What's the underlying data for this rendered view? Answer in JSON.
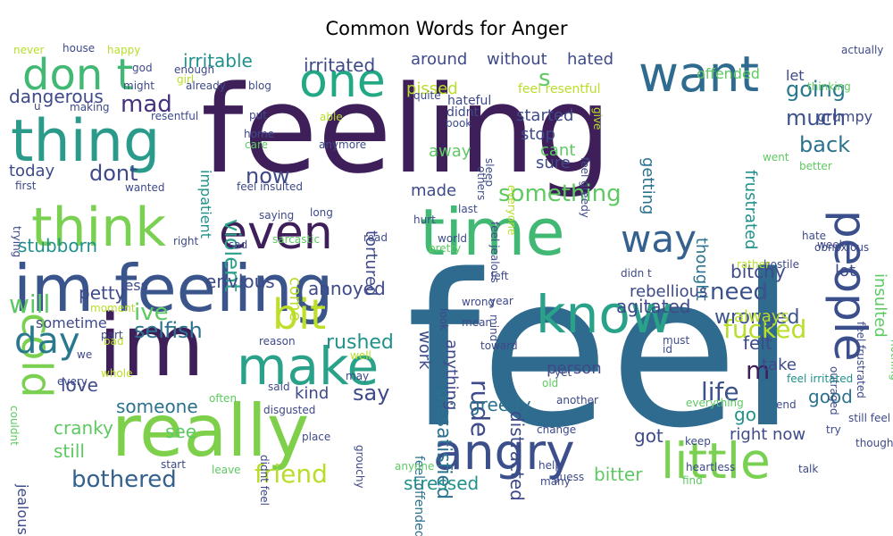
{
  "title": "Common Words for Anger",
  "words": [
    {
      "text": "feel",
      "color": "#2f6a8f"
    },
    {
      "text": "feeling",
      "color": "#3f1f5a"
    },
    {
      "text": "im",
      "color": "#3f1f5a"
    },
    {
      "text": "really",
      "color": "#7ed04b"
    },
    {
      "text": "time",
      "color": "#41b873"
    },
    {
      "text": "im feeling",
      "color": "#39558c"
    },
    {
      "text": "think",
      "color": "#7ad151"
    },
    {
      "text": "thing",
      "color": "#2a9a8a"
    },
    {
      "text": "want",
      "color": "#2f6a8f"
    },
    {
      "text": "know",
      "color": "#2aa28a"
    },
    {
      "text": "little",
      "color": "#7ad151"
    },
    {
      "text": "angry",
      "color": "#3b4f8c"
    },
    {
      "text": "people",
      "color": "#3b4f8c"
    },
    {
      "text": "make",
      "color": "#2aa28a"
    },
    {
      "text": "way",
      "color": "#34618d"
    },
    {
      "text": "even",
      "color": "#3f1f5a"
    },
    {
      "text": "one",
      "color": "#22a884"
    },
    {
      "text": "don t",
      "color": "#41b873"
    },
    {
      "text": "cold",
      "color": "#7ad151"
    },
    {
      "text": "day",
      "color": "#2a788e"
    },
    {
      "text": "bit",
      "color": "#bddf26"
    },
    {
      "text": "life",
      "color": "#3b518b"
    },
    {
      "text": "fucked",
      "color": "#b8de29"
    },
    {
      "text": "friend",
      "color": "#b8de29"
    },
    {
      "text": "selfish",
      "color": "#2c728e"
    },
    {
      "text": "something",
      "color": "#5ec962"
    },
    {
      "text": "bothered",
      "color": "#34618d"
    },
    {
      "text": "violent",
      "color": "#2aa28a"
    },
    {
      "text": "going",
      "color": "#2a788e"
    },
    {
      "text": "much",
      "color": "#3b528b"
    },
    {
      "text": "back",
      "color": "#2c728e"
    },
    {
      "text": "need",
      "color": "#3b528b"
    },
    {
      "text": "wronged",
      "color": "#3b528b"
    },
    {
      "text": "now",
      "color": "#3e4a89"
    },
    {
      "text": "dont",
      "color": "#3e4a89"
    },
    {
      "text": "mad",
      "color": "#46327e"
    },
    {
      "text": "irritable",
      "color": "#21918c"
    },
    {
      "text": "irritated",
      "color": "#3e4a89"
    },
    {
      "text": "dangerous",
      "color": "#3e4a89"
    },
    {
      "text": "today",
      "color": "#3e4a89"
    },
    {
      "text": "ive",
      "color": "#5ec962"
    },
    {
      "text": "will",
      "color": "#5ec962"
    },
    {
      "text": "rude",
      "color": "#3e4a89"
    },
    {
      "text": "s",
      "color": "#5ec962"
    },
    {
      "text": "m",
      "color": "#3f1f5a"
    },
    {
      "text": "say",
      "color": "#3e4a89"
    },
    {
      "text": "agitated",
      "color": "#3e4a89"
    },
    {
      "text": "rushed",
      "color": "#21918c"
    },
    {
      "text": "someone",
      "color": "#2c728e"
    },
    {
      "text": "greedy",
      "color": "#2c728e"
    },
    {
      "text": "good",
      "color": "#2c728e"
    },
    {
      "text": "dissatisfied",
      "color": "#2c728e"
    },
    {
      "text": "distracted",
      "color": "#3e4a89"
    },
    {
      "text": "frustrated",
      "color": "#21918c"
    },
    {
      "text": "around",
      "color": "#3e4a89"
    },
    {
      "text": "without",
      "color": "#3e4a89"
    },
    {
      "text": "hated",
      "color": "#3e4a89"
    },
    {
      "text": "pissed",
      "color": "#b8de29"
    },
    {
      "text": "stubborn",
      "color": "#21918c"
    },
    {
      "text": "petty",
      "color": "#3e4a89"
    },
    {
      "text": "envious",
      "color": "#3e4a89"
    },
    {
      "text": "annoyed",
      "color": "#3e4a89"
    },
    {
      "text": "love",
      "color": "#3e4a89"
    },
    {
      "text": "cranky",
      "color": "#5ec962"
    },
    {
      "text": "still",
      "color": "#5ec962"
    },
    {
      "text": "see",
      "color": "#5ec962"
    },
    {
      "text": "stressed",
      "color": "#21918c"
    },
    {
      "text": "bitter",
      "color": "#5ec962"
    },
    {
      "text": "bitchy",
      "color": "#3e4a89"
    },
    {
      "text": "felt",
      "color": "#3e4a89"
    },
    {
      "text": "lot",
      "color": "#3e4a89"
    },
    {
      "text": "always",
      "color": "#b8de29"
    },
    {
      "text": "go",
      "color": "#21918c"
    },
    {
      "text": "got",
      "color": "#3e4a89"
    },
    {
      "text": "right now",
      "color": "#3e4a89"
    },
    {
      "text": "take",
      "color": "#3e4a89"
    },
    {
      "text": "thought",
      "color": "#2c728e"
    },
    {
      "text": "getting",
      "color": "#2c728e"
    },
    {
      "text": "insulted",
      "color": "#5ec962"
    },
    {
      "text": "tortured",
      "color": "#3e4a89"
    },
    {
      "text": "made",
      "color": "#3e4a89"
    },
    {
      "text": "stop",
      "color": "#3e4a89"
    },
    {
      "text": "started",
      "color": "#3e4a89"
    },
    {
      "text": "sure",
      "color": "#3e4a89"
    },
    {
      "text": "cant",
      "color": "#5ec962"
    },
    {
      "text": "away",
      "color": "#5ec962"
    },
    {
      "text": "let",
      "color": "#3e4a89"
    },
    {
      "text": "offended",
      "color": "#5ec962"
    },
    {
      "text": "grumpy",
      "color": "#3e4a89"
    },
    {
      "text": "rebellious",
      "color": "#3e4a89"
    },
    {
      "text": "person",
      "color": "#3e4a89"
    },
    {
      "text": "kind",
      "color": "#3e4a89"
    },
    {
      "text": "come",
      "color": "#b8de29"
    },
    {
      "text": "work",
      "color": "#3e4a89"
    },
    {
      "text": "less",
      "color": "#3e4a89"
    },
    {
      "text": "sometime",
      "color": "#3e4a89"
    },
    {
      "text": "anything",
      "color": "#3e4a89"
    },
    {
      "text": "impatient",
      "color": "#21918c"
    },
    {
      "text": "jealous",
      "color": "#3e4a89"
    },
    {
      "text": "feel offended",
      "color": "#2c728e"
    },
    {
      "text": "didnt",
      "color": "#3e4a89"
    },
    {
      "text": "hateful",
      "color": "#3e4a89"
    },
    {
      "text": "feel resentful",
      "color": "#b8de29"
    },
    {
      "text": "never",
      "color": "#b8de29"
    },
    {
      "text": "house",
      "color": "#3e4a89"
    },
    {
      "text": "happy",
      "color": "#b8de29"
    },
    {
      "text": "god",
      "color": "#3e4a89"
    },
    {
      "text": "enough",
      "color": "#3e4a89"
    },
    {
      "text": "girl",
      "color": "#b8de29"
    },
    {
      "text": "might",
      "color": "#3e4a89"
    },
    {
      "text": "already",
      "color": "#3e4a89"
    },
    {
      "text": "blog",
      "color": "#3e4a89"
    },
    {
      "text": "u",
      "color": "#3e4a89"
    },
    {
      "text": "making",
      "color": "#3e4a89"
    },
    {
      "text": "resentful",
      "color": "#3e4a89"
    },
    {
      "text": "put",
      "color": "#3e4a89"
    },
    {
      "text": "able",
      "color": "#b8de29"
    },
    {
      "text": "home",
      "color": "#3e4a89"
    },
    {
      "text": "care",
      "color": "#5ec962"
    },
    {
      "text": "anymore",
      "color": "#3e4a89"
    },
    {
      "text": "quite",
      "color": "#3e4a89"
    },
    {
      "text": "book",
      "color": "#3e4a89"
    },
    {
      "text": "sleep",
      "color": "#3e4a89"
    },
    {
      "text": "feel greedy",
      "color": "#3e4a89"
    },
    {
      "text": "give",
      "color": "#b8de29"
    },
    {
      "text": "everyone",
      "color": "#b8de29"
    },
    {
      "text": "others",
      "color": "#3e4a89"
    },
    {
      "text": "actually",
      "color": "#3e4a89"
    },
    {
      "text": "thinking",
      "color": "#5ec962"
    },
    {
      "text": "went",
      "color": "#5ec962"
    },
    {
      "text": "better",
      "color": "#5ec962"
    },
    {
      "text": "hate",
      "color": "#3e4a89"
    },
    {
      "text": "week",
      "color": "#3e4a89"
    },
    {
      "text": "obnoxious",
      "color": "#3e4a89"
    },
    {
      "text": "hostile",
      "color": "#3e4a89"
    },
    {
      "text": "rather",
      "color": "#b8de29"
    },
    {
      "text": "must",
      "color": "#3e4a89"
    },
    {
      "text": "id",
      "color": "#3e4a89"
    },
    {
      "text": "outraged",
      "color": "#3e4a89"
    },
    {
      "text": "feel frustrated",
      "color": "#3e4a89"
    },
    {
      "text": "nothing",
      "color": "#5ec962"
    },
    {
      "text": "feel irritated",
      "color": "#21918c"
    },
    {
      "text": "end",
      "color": "#3e4a89"
    },
    {
      "text": "still feel",
      "color": "#3e4a89"
    },
    {
      "text": "try",
      "color": "#3e4a89"
    },
    {
      "text": "though",
      "color": "#3e4a89"
    },
    {
      "text": "talk",
      "color": "#3e4a89"
    },
    {
      "text": "keep",
      "color": "#3e4a89"
    },
    {
      "text": "heartless",
      "color": "#3e4a89"
    },
    {
      "text": "find",
      "color": "#5ec962"
    },
    {
      "text": "guess",
      "color": "#3e4a89"
    },
    {
      "text": "many",
      "color": "#3e4a89"
    },
    {
      "text": "help",
      "color": "#3e4a89"
    },
    {
      "text": "change",
      "color": "#3e4a89"
    },
    {
      "text": "everything",
      "color": "#5ec962"
    },
    {
      "text": "old",
      "color": "#5ec962"
    },
    {
      "text": "another",
      "color": "#3e4a89"
    },
    {
      "text": "yet",
      "color": "#3e4a89"
    },
    {
      "text": "toward",
      "color": "#3e4a89"
    },
    {
      "text": "mean",
      "color": "#3e4a89"
    },
    {
      "text": "wrong",
      "color": "#3e4a89"
    },
    {
      "text": "year",
      "color": "#3e4a89"
    },
    {
      "text": "mind",
      "color": "#3e4a89"
    },
    {
      "text": "look",
      "color": "#3e4a89"
    },
    {
      "text": "left",
      "color": "#3e4a89"
    },
    {
      "text": "didn t",
      "color": "#3e4a89"
    },
    {
      "text": "hurt",
      "color": "#3e4a89"
    },
    {
      "text": "pretty",
      "color": "#5ec962"
    },
    {
      "text": "world",
      "color": "#3e4a89"
    },
    {
      "text": "feel jealous",
      "color": "#3e4a89"
    },
    {
      "text": "last",
      "color": "#3e4a89"
    },
    {
      "text": "read",
      "color": "#3e4a89"
    },
    {
      "text": "long",
      "color": "#3e4a89"
    },
    {
      "text": "feel insulted",
      "color": "#3e4a89"
    },
    {
      "text": "wanted",
      "color": "#3e4a89"
    },
    {
      "text": "first",
      "color": "#3e4a89"
    },
    {
      "text": "trying",
      "color": "#3e4a89"
    },
    {
      "text": "right",
      "color": "#3e4a89"
    },
    {
      "text": "sad",
      "color": "#3e4a89"
    },
    {
      "text": "saying",
      "color": "#3e4a89"
    },
    {
      "text": "sarcastic",
      "color": "#5ec962"
    },
    {
      "text": "moment",
      "color": "#b8de29"
    },
    {
      "text": "reason",
      "color": "#3e4a89"
    },
    {
      "text": "bad",
      "color": "#b8de29"
    },
    {
      "text": "we",
      "color": "#3e4a89"
    },
    {
      "text": "part",
      "color": "#3e4a89"
    },
    {
      "text": "well",
      "color": "#b8de29"
    },
    {
      "text": "whole",
      "color": "#b8de29"
    },
    {
      "text": "may",
      "color": "#3e4a89"
    },
    {
      "text": "every",
      "color": "#3e4a89"
    },
    {
      "text": "couldnt",
      "color": "#5ec962"
    },
    {
      "text": "often",
      "color": "#5ec962"
    },
    {
      "text": "said",
      "color": "#3e4a89"
    },
    {
      "text": "disgusted",
      "color": "#3e4a89"
    },
    {
      "text": "didnt feel",
      "color": "#3e4a89"
    },
    {
      "text": "place",
      "color": "#3e4a89"
    },
    {
      "text": "grouchy",
      "color": "#3e4a89"
    },
    {
      "text": "start",
      "color": "#3e4a89"
    },
    {
      "text": "leave",
      "color": "#5ec962"
    },
    {
      "text": "anyone",
      "color": "#5ec962"
    }
  ]
}
